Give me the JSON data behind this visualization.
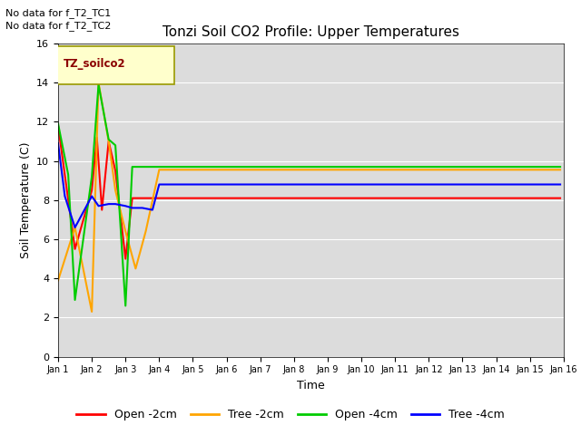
{
  "title": "Tonzi Soil CO2 Profile: Upper Temperatures",
  "xlabel": "Time",
  "ylabel": "Soil Temperature (C)",
  "top_annotations": [
    "No data for f_T2_TC1",
    "No data for f_T2_TC2"
  ],
  "legend_box_label": "TZ_soilco2",
  "xlim": [
    1,
    16
  ],
  "ylim": [
    0,
    16
  ],
  "yticks": [
    0,
    2,
    4,
    6,
    8,
    10,
    12,
    14,
    16
  ],
  "xtick_labels": [
    "Jan 1",
    "Jan 2",
    "Jan 3",
    "Jan 4",
    "Jan 5",
    "Jan 6",
    "Jan 7",
    "Jan 8",
    "Jan 9",
    "Jan 10",
    "Jan 11",
    "Jan 12",
    "Jan 13",
    "Jan 14",
    "Jan 15",
    "Jan 16"
  ],
  "colors": {
    "open_2cm": "#ff0000",
    "tree_2cm": "#ffa500",
    "open_4cm": "#00cc00",
    "tree_4cm": "#0000ff"
  },
  "series": {
    "open_2cm": {
      "x": [
        1.0,
        1.5,
        2.0,
        2.15,
        2.3,
        2.5,
        2.7,
        3.0,
        3.2,
        3.4,
        3.6,
        4.0,
        5,
        6,
        7,
        8,
        9,
        10,
        11,
        12,
        13,
        14,
        15,
        15.9
      ],
      "y": [
        11.8,
        5.5,
        8.5,
        11.2,
        7.5,
        11.0,
        9.5,
        5.0,
        8.1,
        8.1,
        8.1,
        8.1,
        8.1,
        8.1,
        8.1,
        8.1,
        8.1,
        8.1,
        8.1,
        8.1,
        8.1,
        8.1,
        8.1,
        8.1
      ]
    },
    "tree_2cm": {
      "x": [
        1.0,
        1.5,
        2.0,
        2.2,
        2.5,
        2.7,
        3.0,
        3.3,
        3.6,
        4.0,
        5,
        6,
        7,
        8,
        9,
        10,
        11,
        12,
        13,
        14,
        15,
        15.9
      ],
      "y": [
        3.9,
        6.6,
        2.3,
        14.0,
        11.0,
        8.5,
        6.4,
        4.5,
        6.4,
        9.55,
        9.55,
        9.55,
        9.55,
        9.55,
        9.55,
        9.55,
        9.55,
        9.55,
        9.55,
        9.55,
        9.55,
        9.55
      ]
    },
    "open_4cm": {
      "x": [
        1.0,
        1.3,
        1.5,
        2.0,
        2.2,
        2.5,
        2.7,
        3.0,
        3.2,
        3.6,
        4.0,
        5,
        6,
        7,
        8,
        9,
        10,
        11,
        12,
        13,
        14,
        15,
        15.9
      ],
      "y": [
        11.9,
        9.3,
        2.9,
        9.2,
        13.9,
        11.1,
        10.8,
        2.6,
        9.7,
        9.7,
        9.7,
        9.7,
        9.7,
        9.7,
        9.7,
        9.7,
        9.7,
        9.7,
        9.7,
        9.7,
        9.7,
        9.7,
        9.7
      ]
    },
    "tree_4cm": {
      "x": [
        1.0,
        1.2,
        1.5,
        2.0,
        2.2,
        2.5,
        2.7,
        3.0,
        3.2,
        3.5,
        3.8,
        4.0,
        5,
        6,
        7,
        8,
        9,
        10,
        11,
        12,
        13,
        14,
        15,
        15.9
      ],
      "y": [
        10.9,
        8.2,
        6.6,
        8.2,
        7.7,
        7.8,
        7.8,
        7.7,
        7.6,
        7.6,
        7.5,
        8.8,
        8.8,
        8.8,
        8.8,
        8.8,
        8.8,
        8.8,
        8.8,
        8.8,
        8.8,
        8.8,
        8.8,
        8.8
      ]
    }
  },
  "bg_color": "#dcdcdc",
  "legend_entries": [
    "Open -2cm",
    "Tree -2cm",
    "Open -4cm",
    "Tree -4cm"
  ]
}
